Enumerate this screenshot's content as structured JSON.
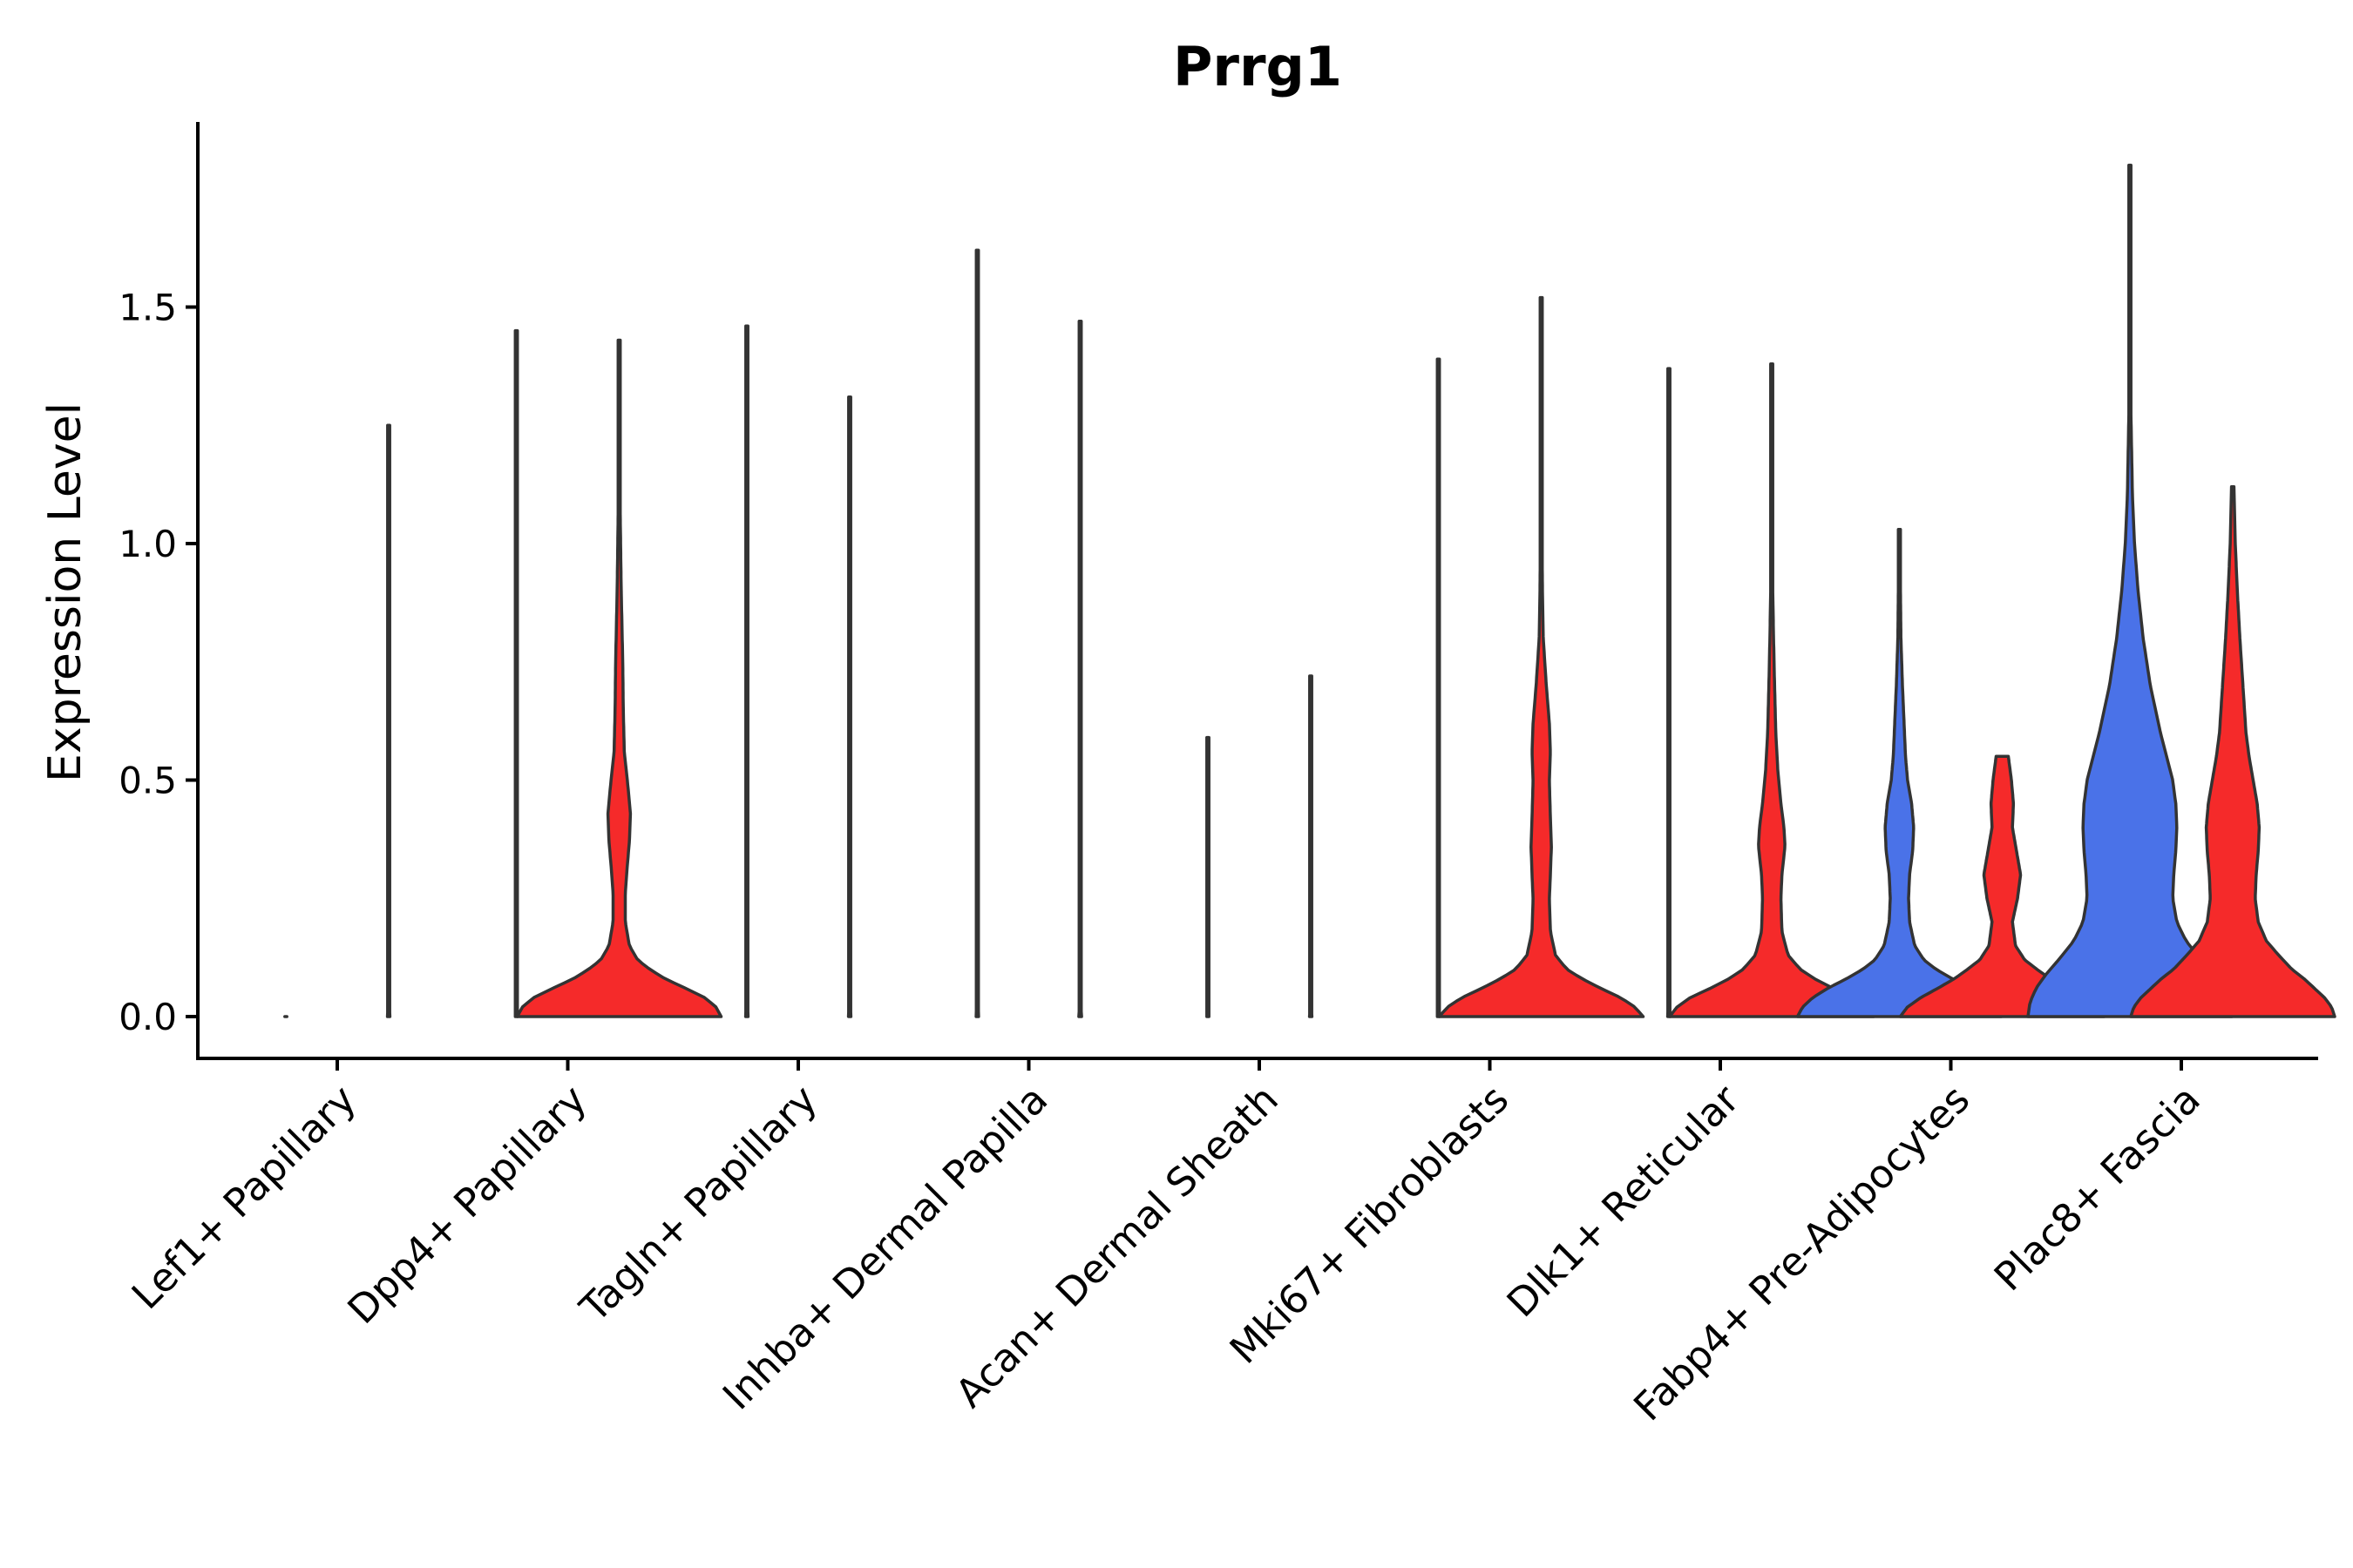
{
  "chart_data": {
    "type": "violin",
    "title": "Prrg1",
    "xlabel": "",
    "ylabel": "Expression Level",
    "ylim": [
      -0.09,
      1.88
    ],
    "yticks": [
      0.0,
      0.5,
      1.0,
      1.5
    ],
    "ytick_labels": [
      "0.0",
      "0.5",
      "1.0",
      "1.5"
    ],
    "categories": [
      "Lef1+ Papillary",
      "Dpp4+ Papillary",
      "Tagln+ Papillary",
      "Inhba+ Dermal Papilla",
      "Acan+ Dermal Sheath",
      "Mki67+ Fibroblasts",
      "Dlk1+ Reticular",
      "Fabp4+ Pre-Adipocytes",
      "Plac8+ Fascia"
    ],
    "group_colors": {
      "left": "#4a72e8",
      "right": "#f52a2a"
    },
    "violins": [
      {
        "category": "Lef1+ Papillary",
        "side": "left",
        "max": 0,
        "profile": [
          [
            0,
            0.004
          ],
          [
            0.002,
            0.004
          ]
        ]
      },
      {
        "category": "Lef1+ Papillary",
        "side": "right",
        "max": 1.25,
        "profile": [
          [
            0,
            0.012
          ],
          [
            0.003,
            0.008
          ],
          [
            0.01,
            0.004
          ],
          [
            0.05,
            0.004
          ],
          [
            1.25,
            0.004
          ]
        ]
      },
      {
        "category": "Dpp4+ Papillary",
        "side": "left",
        "max": 1.45,
        "profile": [
          [
            0,
            0.008
          ],
          [
            0.003,
            0.006
          ],
          [
            0.01,
            0.004
          ],
          [
            0.05,
            0.004
          ],
          [
            1.45,
            0.004
          ]
        ]
      },
      {
        "category": "Dpp4+ Papillary",
        "side": "right",
        "max": 1.43,
        "profile": [
          [
            0,
            1.0
          ],
          [
            0.02,
            0.95
          ],
          [
            0.04,
            0.84
          ],
          [
            0.06,
            0.65
          ],
          [
            0.08,
            0.45
          ],
          [
            0.1,
            0.3
          ],
          [
            0.12,
            0.18
          ],
          [
            0.15,
            0.1
          ],
          [
            0.2,
            0.06
          ],
          [
            0.26,
            0.06
          ],
          [
            0.32,
            0.08
          ],
          [
            0.37,
            0.1
          ],
          [
            0.43,
            0.11
          ],
          [
            0.5,
            0.08
          ],
          [
            0.56,
            0.05
          ],
          [
            0.65,
            0.04
          ],
          [
            0.75,
            0.035
          ],
          [
            0.9,
            0.02
          ],
          [
            1.1,
            0.008
          ],
          [
            1.25,
            0.004
          ],
          [
            1.43,
            0.004
          ]
        ]
      },
      {
        "category": "Tagln+ Papillary",
        "side": "left",
        "max": 1.46,
        "profile": [
          [
            0,
            0.012
          ],
          [
            0.003,
            0.008
          ],
          [
            0.01,
            0.004
          ],
          [
            0.05,
            0.004
          ],
          [
            1.46,
            0.004
          ]
        ]
      },
      {
        "category": "Tagln+ Papillary",
        "side": "right",
        "max": 1.31,
        "profile": [
          [
            0,
            0.012
          ],
          [
            0.003,
            0.008
          ],
          [
            0.01,
            0.004
          ],
          [
            0.05,
            0.004
          ],
          [
            1.31,
            0.004
          ]
        ]
      },
      {
        "category": "Inhba+ Dermal Papilla",
        "side": "left",
        "max": 1.62,
        "profile": [
          [
            0,
            0.012
          ],
          [
            0.003,
            0.008
          ],
          [
            0.01,
            0.004
          ],
          [
            0.05,
            0.004
          ],
          [
            1.62,
            0.004
          ]
        ]
      },
      {
        "category": "Inhba+ Dermal Papilla",
        "side": "right",
        "max": 1.47,
        "profile": [
          [
            0,
            0.014
          ],
          [
            0.003,
            0.009
          ],
          [
            0.01,
            0.004
          ],
          [
            0.05,
            0.004
          ],
          [
            1.47,
            0.004
          ]
        ]
      },
      {
        "category": "Acan+ Dermal Sheath",
        "side": "left",
        "max": 0.59,
        "profile": [
          [
            0,
            0.01
          ],
          [
            0.003,
            0.006
          ],
          [
            0.01,
            0.004
          ],
          [
            0.05,
            0.004
          ],
          [
            0.59,
            0.004
          ]
        ]
      },
      {
        "category": "Acan+ Dermal Sheath",
        "side": "right",
        "max": 0.72,
        "profile": [
          [
            0,
            0.012
          ],
          [
            0.003,
            0.008
          ],
          [
            0.01,
            0.004
          ],
          [
            0.05,
            0.004
          ],
          [
            0.72,
            0.004
          ]
        ]
      },
      {
        "category": "Mki67+ Fibroblasts",
        "side": "left",
        "max": 1.39,
        "profile": [
          [
            0,
            0.01
          ],
          [
            0.003,
            0.006
          ],
          [
            0.01,
            0.004
          ],
          [
            0.05,
            0.004
          ],
          [
            1.39,
            0.004
          ]
        ]
      },
      {
        "category": "Mki67+ Fibroblasts",
        "side": "right",
        "max": 1.52,
        "profile": [
          [
            0,
            1.0
          ],
          [
            0.02,
            0.92
          ],
          [
            0.04,
            0.78
          ],
          [
            0.06,
            0.58
          ],
          [
            0.08,
            0.4
          ],
          [
            0.1,
            0.25
          ],
          [
            0.13,
            0.14
          ],
          [
            0.18,
            0.09
          ],
          [
            0.25,
            0.08
          ],
          [
            0.3,
            0.09
          ],
          [
            0.36,
            0.1
          ],
          [
            0.42,
            0.09
          ],
          [
            0.5,
            0.08
          ],
          [
            0.56,
            0.09
          ],
          [
            0.62,
            0.08
          ],
          [
            0.7,
            0.05
          ],
          [
            0.8,
            0.02
          ],
          [
            0.9,
            0.012
          ],
          [
            1.1,
            0.006
          ],
          [
            1.52,
            0.004
          ]
        ]
      },
      {
        "category": "Dlk1+ Reticular",
        "side": "left",
        "max": 1.37,
        "profile": [
          [
            0,
            0.012
          ],
          [
            0.003,
            0.008
          ],
          [
            0.01,
            0.004
          ],
          [
            0.05,
            0.004
          ],
          [
            1.37,
            0.004
          ]
        ]
      },
      {
        "category": "Dlk1+ Reticular",
        "side": "right",
        "max": 1.38,
        "profile": [
          [
            0,
            1.0
          ],
          [
            0.02,
            0.93
          ],
          [
            0.04,
            0.8
          ],
          [
            0.06,
            0.6
          ],
          [
            0.08,
            0.42
          ],
          [
            0.1,
            0.28
          ],
          [
            0.13,
            0.16
          ],
          [
            0.18,
            0.1
          ],
          [
            0.25,
            0.09
          ],
          [
            0.3,
            0.1
          ],
          [
            0.36,
            0.13
          ],
          [
            0.4,
            0.12
          ],
          [
            0.45,
            0.09
          ],
          [
            0.52,
            0.06
          ],
          [
            0.6,
            0.04
          ],
          [
            0.7,
            0.028
          ],
          [
            0.8,
            0.018
          ],
          [
            0.9,
            0.01
          ],
          [
            1.1,
            0.006
          ],
          [
            1.38,
            0.004
          ]
        ]
      },
      {
        "category": "Fabp4+ Pre-Adipocytes",
        "side": "left",
        "max": 1.03,
        "profile": [
          [
            0,
            1.0
          ],
          [
            0.02,
            0.95
          ],
          [
            0.04,
            0.85
          ],
          [
            0.06,
            0.7
          ],
          [
            0.08,
            0.52
          ],
          [
            0.1,
            0.36
          ],
          [
            0.12,
            0.24
          ],
          [
            0.15,
            0.15
          ],
          [
            0.2,
            0.1
          ],
          [
            0.25,
            0.09
          ],
          [
            0.3,
            0.1
          ],
          [
            0.35,
            0.13
          ],
          [
            0.4,
            0.14
          ],
          [
            0.45,
            0.12
          ],
          [
            0.5,
            0.08
          ],
          [
            0.55,
            0.06
          ],
          [
            0.6,
            0.05
          ],
          [
            0.7,
            0.03
          ],
          [
            0.8,
            0.015
          ],
          [
            1.03,
            0.004
          ]
        ]
      },
      {
        "category": "Fabp4+ Pre-Adipocytes",
        "side": "right",
        "max": 0.55,
        "profile": [
          [
            0,
            1.0
          ],
          [
            0.02,
            0.93
          ],
          [
            0.04,
            0.8
          ],
          [
            0.06,
            0.63
          ],
          [
            0.08,
            0.47
          ],
          [
            0.1,
            0.34
          ],
          [
            0.12,
            0.22
          ],
          [
            0.15,
            0.13
          ],
          [
            0.2,
            0.1
          ],
          [
            0.25,
            0.15
          ],
          [
            0.3,
            0.18
          ],
          [
            0.35,
            0.14
          ],
          [
            0.4,
            0.1
          ],
          [
            0.45,
            0.11
          ],
          [
            0.5,
            0.09
          ],
          [
            0.55,
            0.06
          ]
        ]
      },
      {
        "category": "Plac8+ Fascia",
        "side": "left",
        "max": 1.8,
        "profile": [
          [
            0,
            1.0
          ],
          [
            0.03,
            0.98
          ],
          [
            0.06,
            0.92
          ],
          [
            0.09,
            0.82
          ],
          [
            0.12,
            0.7
          ],
          [
            0.16,
            0.55
          ],
          [
            0.2,
            0.46
          ],
          [
            0.25,
            0.42
          ],
          [
            0.3,
            0.43
          ],
          [
            0.35,
            0.45
          ],
          [
            0.4,
            0.46
          ],
          [
            0.45,
            0.45
          ],
          [
            0.5,
            0.42
          ],
          [
            0.55,
            0.36
          ],
          [
            0.6,
            0.3
          ],
          [
            0.7,
            0.2
          ],
          [
            0.8,
            0.13
          ],
          [
            0.9,
            0.08
          ],
          [
            1.0,
            0.045
          ],
          [
            1.1,
            0.025
          ],
          [
            1.3,
            0.008
          ],
          [
            1.5,
            0.004
          ],
          [
            1.8,
            0.004
          ]
        ]
      },
      {
        "category": "Plac8+ Fascia",
        "side": "right",
        "max": 1.12,
        "profile": [
          [
            0,
            1.0
          ],
          [
            0.02,
            0.97
          ],
          [
            0.04,
            0.9
          ],
          [
            0.06,
            0.8
          ],
          [
            0.08,
            0.7
          ],
          [
            0.1,
            0.58
          ],
          [
            0.13,
            0.45
          ],
          [
            0.16,
            0.33
          ],
          [
            0.2,
            0.25
          ],
          [
            0.25,
            0.22
          ],
          [
            0.3,
            0.23
          ],
          [
            0.35,
            0.25
          ],
          [
            0.4,
            0.26
          ],
          [
            0.45,
            0.24
          ],
          [
            0.5,
            0.2
          ],
          [
            0.55,
            0.16
          ],
          [
            0.6,
            0.13
          ],
          [
            0.7,
            0.1
          ],
          [
            0.8,
            0.07
          ],
          [
            0.9,
            0.045
          ],
          [
            1.0,
            0.025
          ],
          [
            1.12,
            0.012
          ]
        ]
      }
    ]
  }
}
